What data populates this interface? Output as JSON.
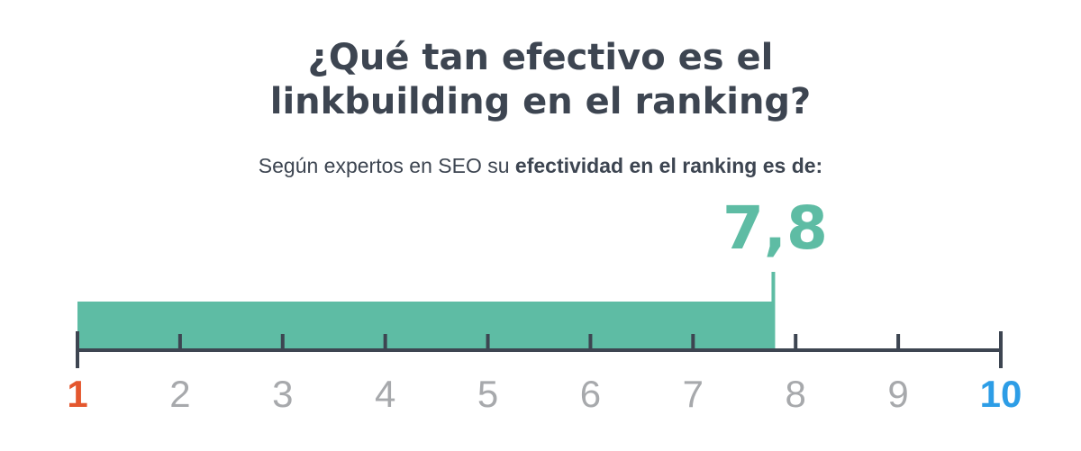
{
  "title": {
    "line1": "¿Qué tan efectivo es el",
    "line2": "linkbuilding en el ranking?"
  },
  "subtitle": {
    "normal": "Según expertos en SEO su ",
    "bold": "efectividad en el ranking es de:"
  },
  "chart_data": {
    "type": "bar",
    "orientation": "horizontal",
    "value": 7.8,
    "value_label": "7,8",
    "xlim": [
      1,
      10
    ],
    "ticks": [
      1,
      2,
      3,
      4,
      5,
      6,
      7,
      8,
      9,
      10
    ],
    "tick_labels": [
      "1",
      "2",
      "3",
      "4",
      "5",
      "6",
      "7",
      "8",
      "9",
      "10"
    ],
    "grid": false,
    "colors": {
      "bar": "#5ebca4",
      "value_label": "#5ebca4",
      "axis": "#3d4551",
      "tick_label": "#a7a9ac",
      "min_label": "#e4572e",
      "max_label": "#2d9de6"
    }
  }
}
